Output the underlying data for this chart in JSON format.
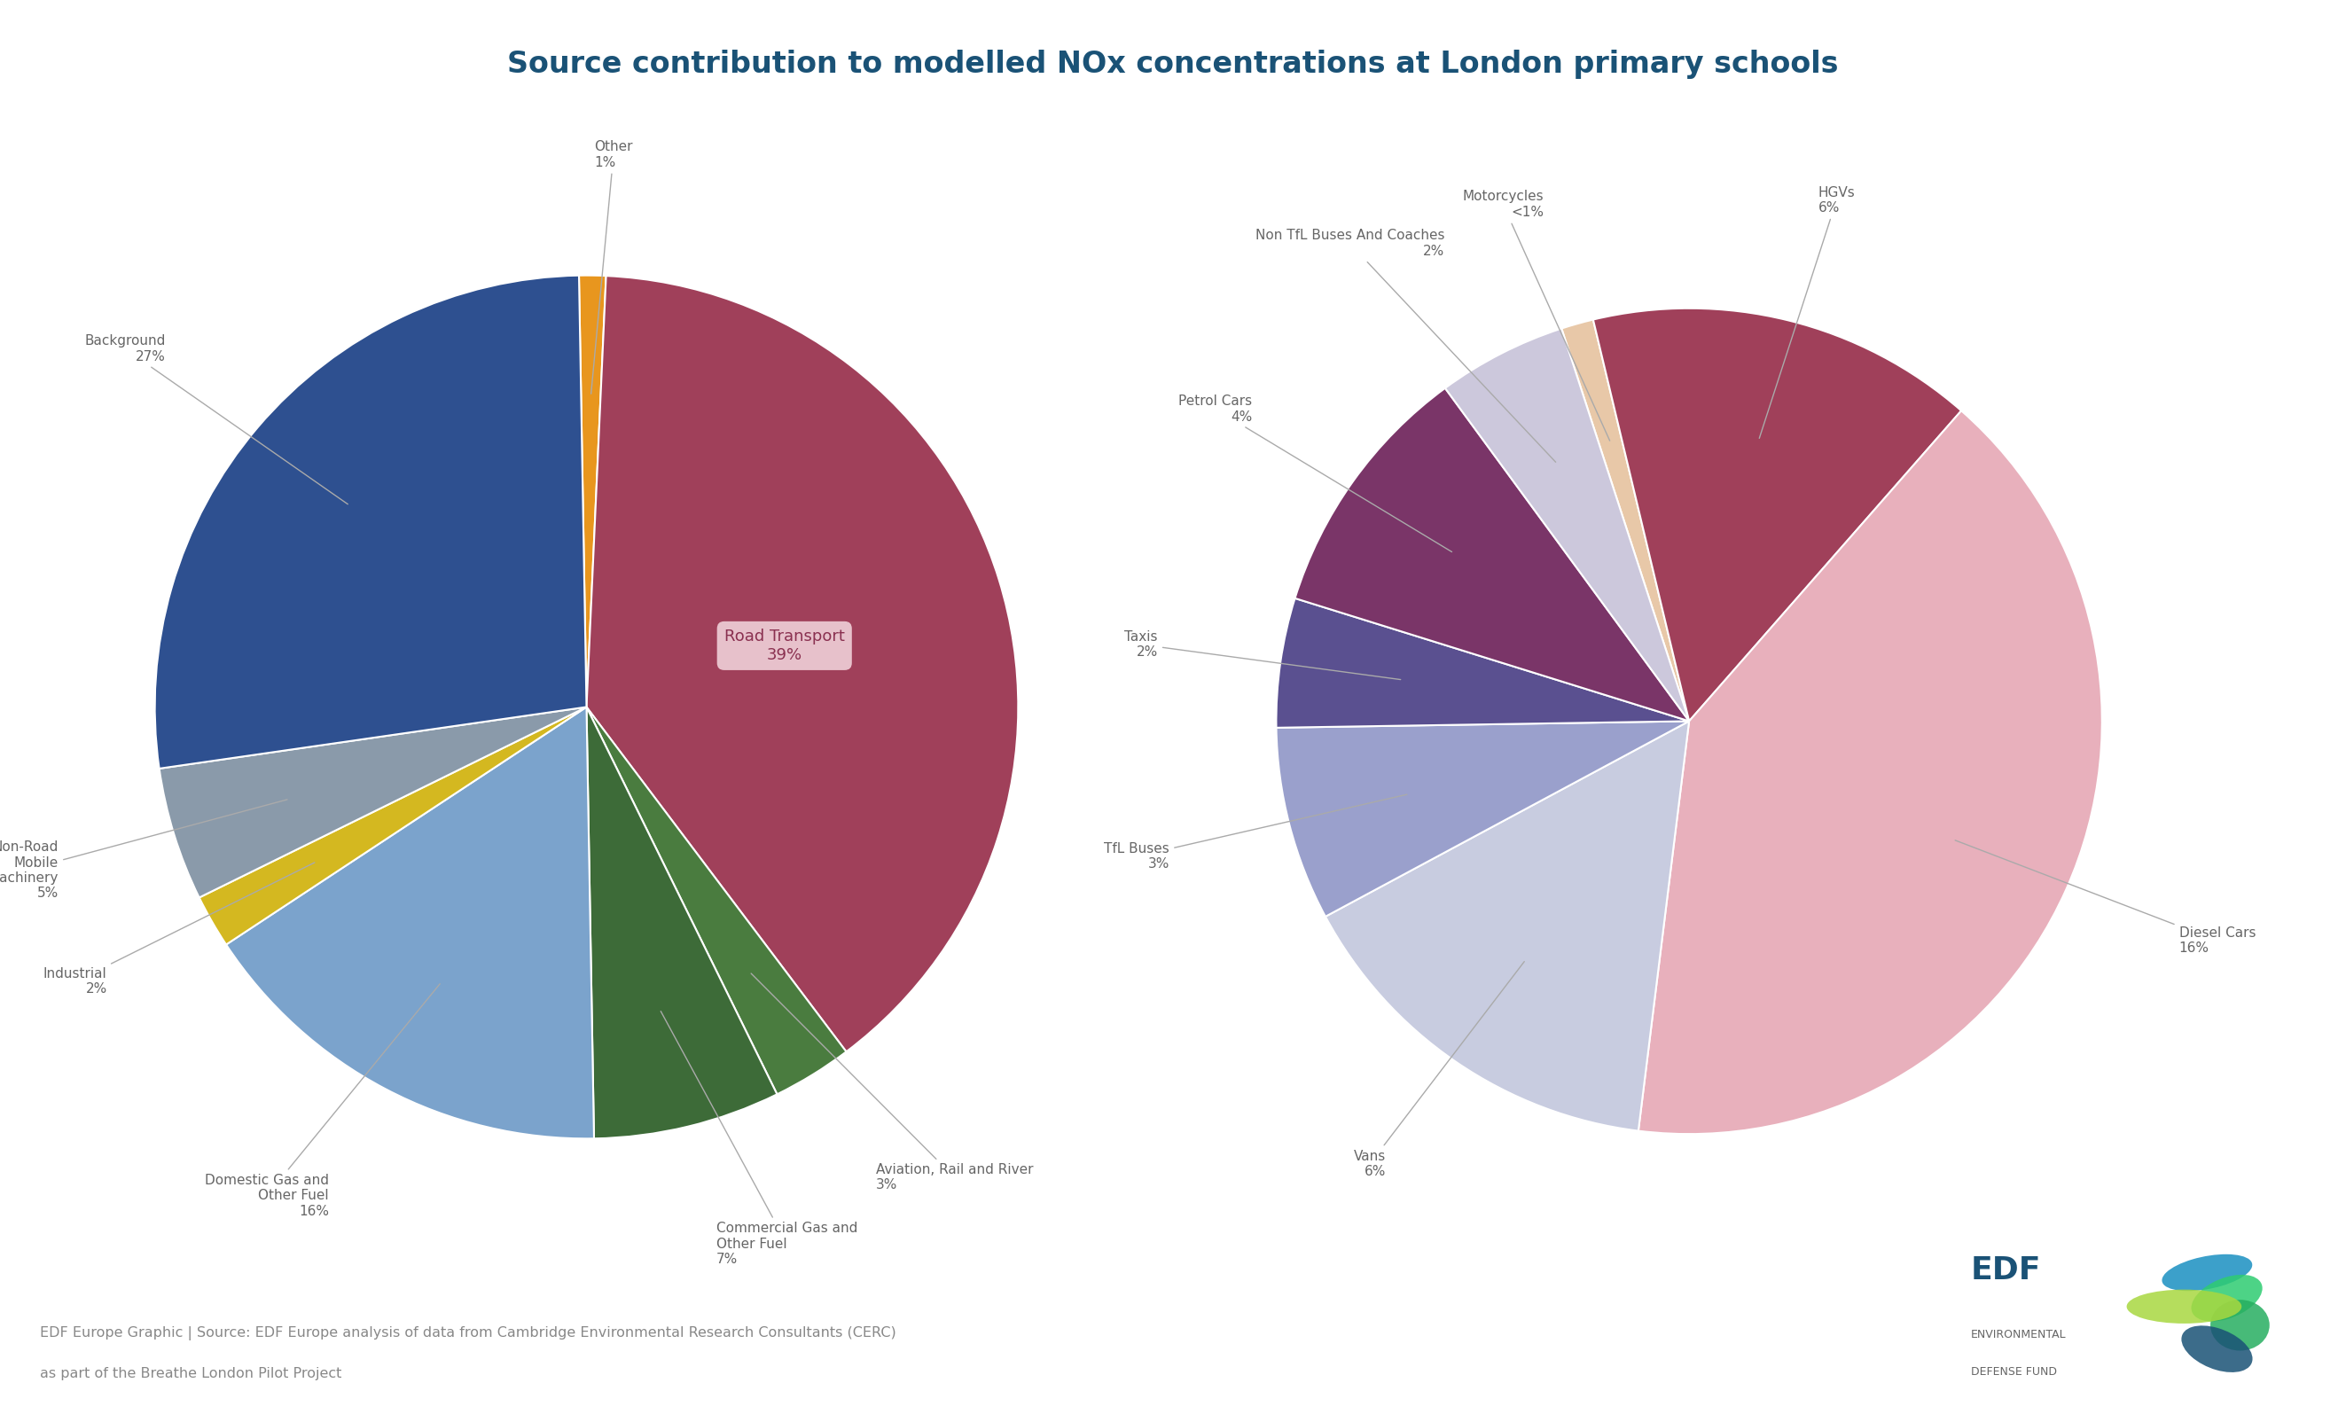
{
  "title": "Source contribution to modelled NOx concentrations at London primary schools",
  "title_color": "#1a5276",
  "background_color": "#ffffff",
  "footer_line1": "EDF Europe Graphic | Source: EDF Europe analysis of data from Cambridge Environmental Research Consultants (CERC)",
  "footer_line2": "as part of the Breathe London Pilot Project",
  "pie1": {
    "labels": [
      "Other",
      "Road Transport",
      "Aviation, Rail and River",
      "Commercial Gas and\nOther Fuel",
      "Domestic Gas and\nOther Fuel",
      "Industrial",
      "Non-Road\nMobile\nMachinery",
      "Background"
    ],
    "values": [
      1,
      39,
      3,
      7,
      16,
      2,
      5,
      27
    ],
    "colors": [
      "#e8961e",
      "#a0405a",
      "#4a7c3f",
      "#3d6b38",
      "#7ba3cc",
      "#d4b820",
      "#8a9aaa",
      "#2e5090"
    ],
    "startangle": 91
  },
  "pie2": {
    "labels": [
      "Motorcycles\n<1%",
      "HGVs\n6%",
      "Diesel Cars\n16%",
      "Vans\n6%",
      "TfL Buses\n3%",
      "Taxis\n2%",
      "Petrol Cars\n4%",
      "Non TfL Buses And Coaches\n2%"
    ],
    "values": [
      0.5,
      6,
      16,
      6,
      3,
      2,
      4,
      2
    ],
    "colors": [
      "#e8c8a8",
      "#a0405a",
      "#e8b0bc",
      "#c8cce0",
      "#9aa0cc",
      "#5a5090",
      "#7a3568",
      "#ccc8dc"
    ],
    "startangle": 108
  },
  "connector_color": "#aaaaaa",
  "label_color": "#666666",
  "road_transport_box_color": "#f0d0d8",
  "road_transport_text_color": "#8a3050"
}
